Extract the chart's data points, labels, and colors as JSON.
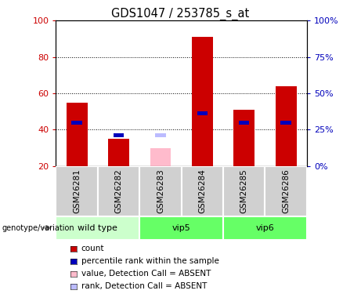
{
  "title": "GDS1047 / 253785_s_at",
  "samples": [
    "GSM26281",
    "GSM26282",
    "GSM26283",
    "GSM26284",
    "GSM26285",
    "GSM26286"
  ],
  "red_values": [
    55,
    35,
    null,
    91,
    51,
    64
  ],
  "blue_values": [
    44,
    37,
    null,
    49,
    44,
    44
  ],
  "pink_values": [
    null,
    null,
    30,
    null,
    null,
    null
  ],
  "light_blue_values": [
    null,
    null,
    37,
    null,
    null,
    null
  ],
  "ylim_left": [
    20,
    100
  ],
  "ylim_right": [
    0,
    100
  ],
  "yticks_left": [
    20,
    40,
    60,
    80,
    100
  ],
  "yticks_right": [
    0,
    25,
    50,
    75,
    100
  ],
  "bar_width": 0.5,
  "blue_bar_width": 0.25,
  "red_color": "#cc0000",
  "blue_color": "#0000bb",
  "pink_color": "#ffbbcc",
  "light_blue_color": "#bbbbff",
  "groups": [
    {
      "name": "wild type",
      "start": 0,
      "end": 1,
      "color": "#ccffcc"
    },
    {
      "name": "vip5",
      "start": 2,
      "end": 3,
      "color": "#66ff66"
    },
    {
      "name": "vip6",
      "start": 4,
      "end": 5,
      "color": "#66ff66"
    }
  ],
  "sample_bg_color": "#d0d0d0",
  "left_axis_color": "#cc0000",
  "right_axis_color": "#0000bb"
}
